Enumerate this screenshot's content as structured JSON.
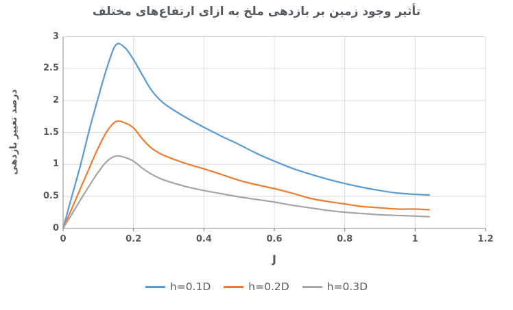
{
  "chart_data": {
    "type": "line",
    "title": "تأثیر وجود زمین بر بازدهی ملخ به ازای ارتفاع‌های مختلف",
    "xlabel": "J",
    "ylabel": "درصد تغییر بازدهی",
    "xlim": [
      0,
      1.2
    ],
    "ylim": [
      0,
      3
    ],
    "x_ticks": [
      0,
      0.2,
      0.4,
      0.6,
      0.8,
      1,
      1.2
    ],
    "x_tick_labels": [
      "0",
      "0.2",
      "0.4",
      "0.6",
      "0.8",
      "1",
      "1.2"
    ],
    "y_ticks": [
      0,
      0.5,
      1,
      1.5,
      2,
      2.5,
      3
    ],
    "y_tick_labels": [
      "0",
      "0.5",
      "1",
      "1.5",
      "2",
      "2.5",
      "3"
    ],
    "grid": true,
    "legend_position": "bottom",
    "x": [
      0,
      0.025,
      0.05,
      0.075,
      0.1,
      0.125,
      0.15,
      0.175,
      0.2,
      0.225,
      0.25,
      0.275,
      0.3,
      0.35,
      0.4,
      0.45,
      0.5,
      0.55,
      0.6,
      0.65,
      0.7,
      0.75,
      0.8,
      0.85,
      0.9,
      0.95,
      1.0,
      1.04
    ],
    "series": [
      {
        "name": "h=0.1D",
        "color": "#5B9BD5",
        "values": [
          0,
          0.5,
          1.0,
          1.55,
          2.05,
          2.52,
          2.87,
          2.83,
          2.64,
          2.4,
          2.17,
          2.01,
          1.9,
          1.73,
          1.58,
          1.44,
          1.31,
          1.17,
          1.05,
          0.94,
          0.85,
          0.77,
          0.7,
          0.64,
          0.59,
          0.55,
          0.53,
          0.52
        ]
      },
      {
        "name": "h=0.2D",
        "color": "#ED7D31",
        "values": [
          0,
          0.31,
          0.63,
          0.95,
          1.26,
          1.52,
          1.67,
          1.65,
          1.57,
          1.4,
          1.26,
          1.17,
          1.11,
          1.01,
          0.93,
          0.84,
          0.75,
          0.68,
          0.62,
          0.55,
          0.47,
          0.42,
          0.38,
          0.34,
          0.32,
          0.3,
          0.3,
          0.29
        ]
      },
      {
        "name": "h=0.3D",
        "color": "#A5A5A5",
        "values": [
          0,
          0.22,
          0.45,
          0.67,
          0.88,
          1.05,
          1.13,
          1.11,
          1.05,
          0.94,
          0.85,
          0.78,
          0.73,
          0.65,
          0.59,
          0.54,
          0.49,
          0.45,
          0.41,
          0.36,
          0.32,
          0.28,
          0.25,
          0.23,
          0.21,
          0.2,
          0.19,
          0.18
        ]
      }
    ]
  },
  "style": {
    "grid_color": "#D9D9D9",
    "axis_color": "#A6A6A6",
    "tick_mark_color": "#8C8C8C",
    "text_color": "#595959",
    "background": "#FFFFFF",
    "line_width": 2.25
  }
}
